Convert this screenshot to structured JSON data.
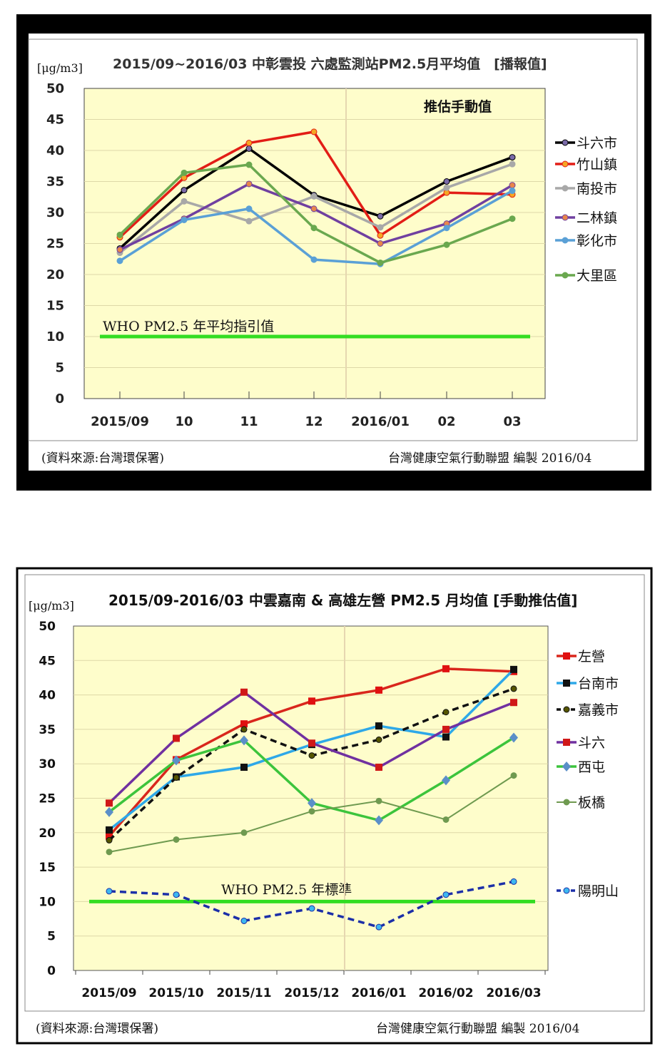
{
  "chart_data": [
    {
      "type": "line",
      "title": "2015/09~2016/03 中彰雲投 六處監測站PM2.5月平均值　[播報值]",
      "ylabel": "[μg/m3]",
      "annotation": "推估手動值",
      "reference_label": "WHO  PM2.5 年平均指引值",
      "reference_value": 10,
      "ylim": [
        0,
        50
      ],
      "yticks": [
        "0",
        "5",
        "10",
        "15",
        "20",
        "25",
        "30",
        "35",
        "40",
        "45",
        "50"
      ],
      "categories": [
        "2015/09",
        "10",
        "11",
        "12",
        "2016/01",
        "02",
        "03"
      ],
      "source": "(資料來源:台灣環保署)",
      "credit": "台灣健康空氣行動聯盟 編製 2016/04",
      "legend_position": "right",
      "series": [
        {
          "name": "斗六市",
          "color": "#000000",
          "marker_color": "#7a6aa8",
          "marker": "circle",
          "values": [
            24.2,
            33.6,
            40.3,
            32.8,
            29.4,
            35.0,
            38.9
          ]
        },
        {
          "name": "竹山鎮",
          "color": "#e21d16",
          "marker_color": "#f5a623",
          "marker": "circle",
          "values": [
            26.0,
            35.6,
            41.2,
            43.0,
            26.3,
            33.2,
            32.9
          ]
        },
        {
          "name": "南投市",
          "color": "#a8a8a8",
          "marker_color": "#a8a8a8",
          "marker": "circle",
          "values": [
            23.5,
            31.8,
            28.6,
            32.6,
            27.6,
            34.0,
            37.8
          ]
        },
        {
          "name": "二林鎮",
          "color": "#7040a0",
          "marker_color": "#e8864a",
          "marker": "circle",
          "values": [
            24.0,
            29.0,
            34.6,
            30.6,
            25.0,
            28.2,
            34.4
          ]
        },
        {
          "name": "彰化市",
          "color": "#5aa0d6",
          "marker_color": "#5aa0d6",
          "marker": "circle",
          "values": [
            22.2,
            28.8,
            30.6,
            22.4,
            21.7,
            27.5,
            33.5
          ]
        },
        {
          "name": "大里區",
          "color": "#6aa84f",
          "marker_color": "#6aa84f",
          "marker": "circle",
          "values": [
            26.4,
            36.4,
            37.7,
            27.5,
            21.9,
            24.8,
            29.0
          ]
        }
      ]
    },
    {
      "type": "line",
      "title": "2015/09-2016/03 中雲嘉南 & 高雄左營 PM2.5 月均值 [手動推估值]",
      "ylabel": "[μg/m3]",
      "reference_label": "WHO PM2.5 年標準",
      "reference_value": 10,
      "ylim": [
        0,
        50
      ],
      "yticks": [
        "0",
        "5",
        "10",
        "15",
        "20",
        "25",
        "30",
        "35",
        "40",
        "45",
        "50"
      ],
      "categories": [
        "2015/09",
        "2015/10",
        "2015/11",
        "2015/12",
        "2016/01",
        "2016/02",
        "2016/03"
      ],
      "source": "(資料來源:台灣環保署)",
      "credit": "台灣健康空氣行動聯盟 編製 2016/04",
      "legend_position": "right",
      "series": [
        {
          "name": "左營",
          "color": "#d9261c",
          "marker_color": "#e01010",
          "marker": "square",
          "values": [
            19.5,
            30.6,
            35.8,
            39.1,
            40.7,
            43.8,
            43.4
          ]
        },
        {
          "name": "台南市",
          "color": "#2ea8e8",
          "marker_color": "#111111",
          "marker": "square",
          "values": [
            20.4,
            28.1,
            29.5,
            32.8,
            35.5,
            33.9,
            43.7
          ]
        },
        {
          "name": "嘉義市",
          "color": "#111111",
          "marker_color": "#555500",
          "marker": "circle",
          "dash": true,
          "values": [
            18.9,
            28.0,
            35.0,
            31.2,
            33.5,
            37.5,
            40.9
          ]
        },
        {
          "name": "斗六",
          "color": "#7030a0",
          "marker_color": "#d01818",
          "marker": "square",
          "values": [
            24.3,
            33.7,
            40.4,
            33.0,
            29.5,
            35.0,
            38.9
          ]
        },
        {
          "name": "西屯",
          "color": "#3cc43c",
          "marker_color": "#5b8fc8",
          "marker": "diamond",
          "values": [
            23.0,
            30.5,
            33.4,
            24.3,
            21.8,
            27.6,
            33.8
          ]
        },
        {
          "name": "板橋",
          "color": "#6f9a50",
          "marker_color": "#6f9a50",
          "marker": "circle",
          "thin": true,
          "values": [
            17.2,
            19.0,
            20.0,
            23.1,
            24.6,
            21.9,
            28.3
          ]
        },
        {
          "name": "陽明山",
          "color": "#1c2fa8",
          "marker_color": "#3db8f0",
          "marker": "circle",
          "dash": true,
          "values": [
            11.5,
            11.0,
            7.2,
            9.0,
            6.3,
            11.0,
            12.9
          ]
        }
      ]
    }
  ]
}
